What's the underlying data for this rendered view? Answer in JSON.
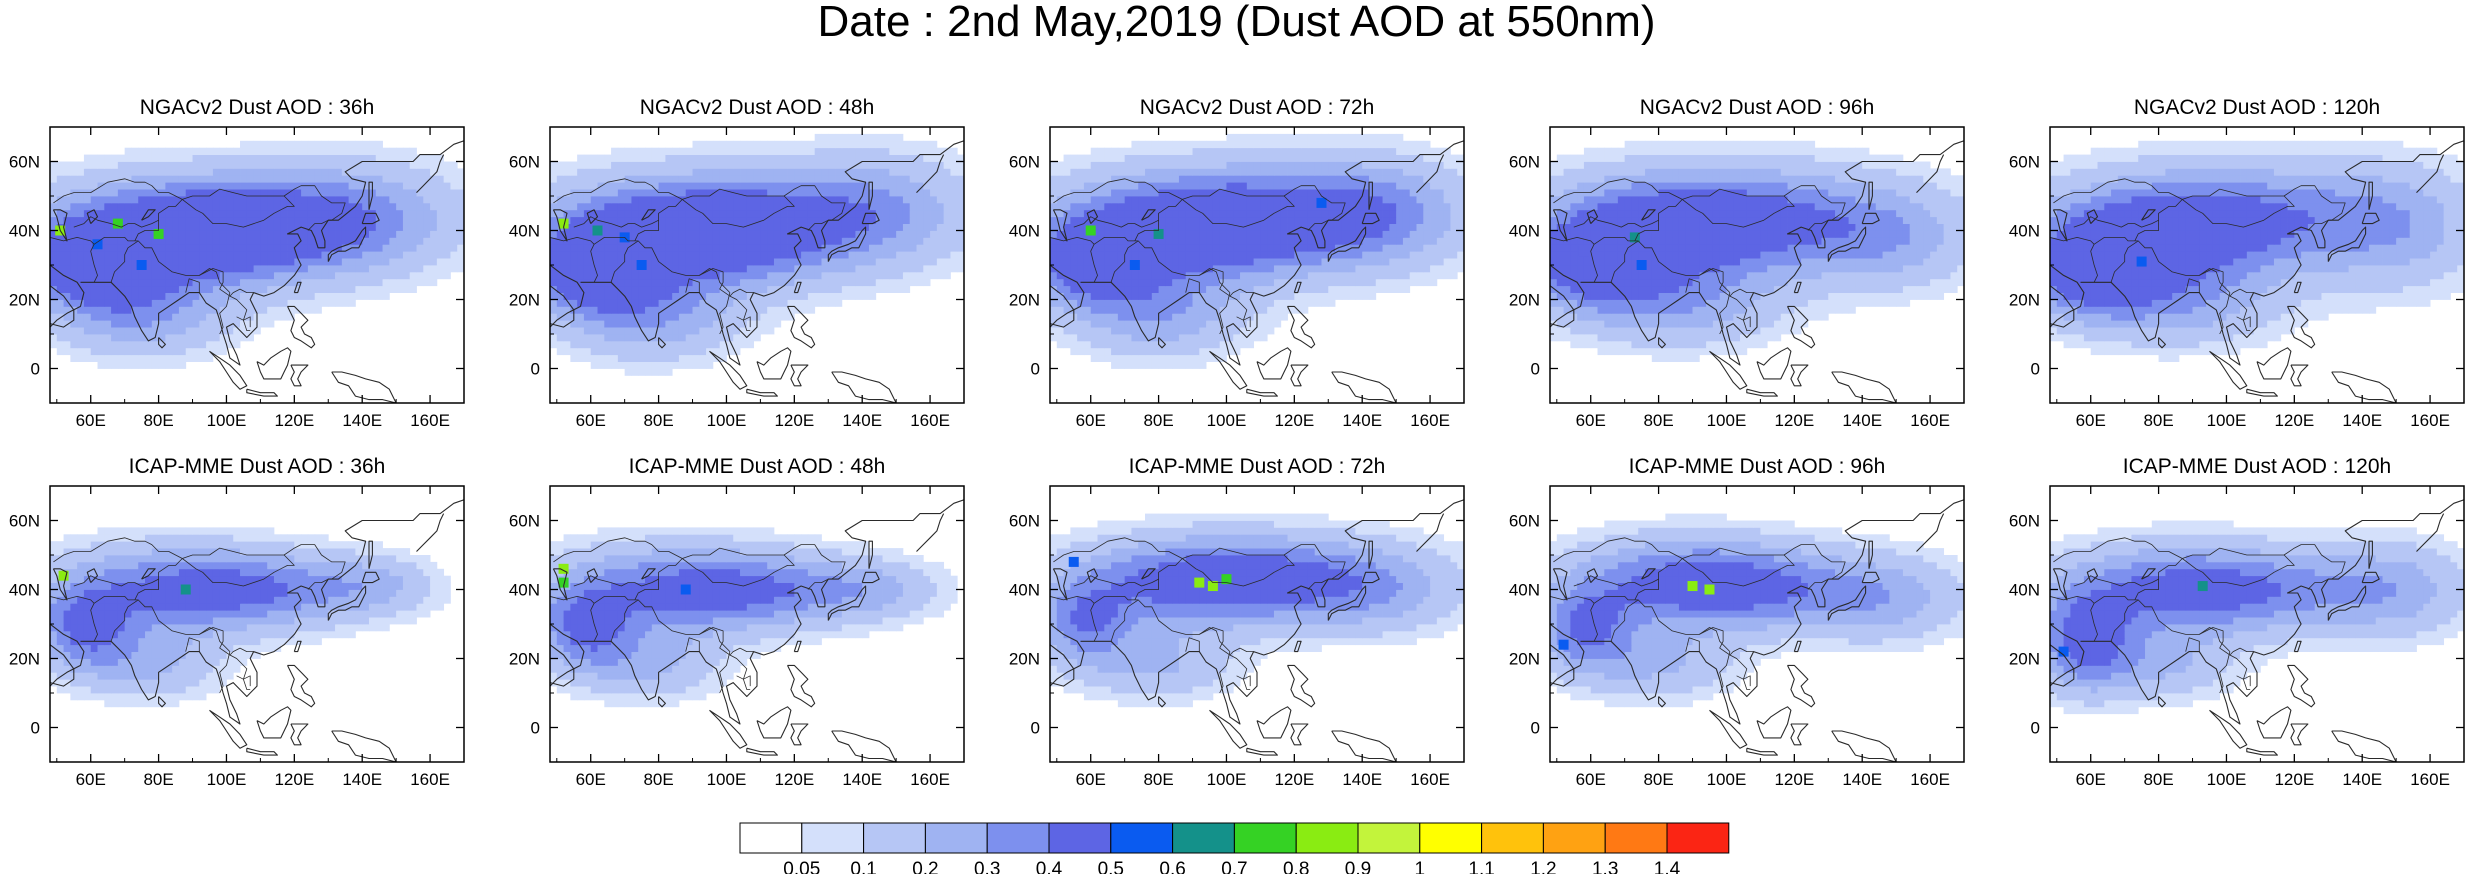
{
  "figure": {
    "title": "Date : 2nd May,2019 (Dust AOD at 550nm)"
  },
  "chart_data": {
    "type": "heatmap",
    "title": "Date : 2nd May,2019 (Dust AOD at 550nm)",
    "map_extent": {
      "lon": [
        48,
        170
      ],
      "lat": [
        -10,
        70
      ]
    },
    "x_ticks": [
      "60E",
      "80E",
      "100E",
      "120E",
      "140E",
      "160E"
    ],
    "x_tick_values": [
      60,
      80,
      100,
      120,
      140,
      160
    ],
    "y_ticks": [
      "60N",
      "40N",
      "20N",
      "0"
    ],
    "y_tick_values": [
      60,
      40,
      20,
      0
    ],
    "panels": [
      {
        "title": "NGACv2 Dust AOD : 36h",
        "model": "NGACv2",
        "forecast_hour": 36,
        "blobs": [
          {
            "lon": 85,
            "lat": 38,
            "rlon": 42,
            "rlat": 16,
            "peak": 0.45
          },
          {
            "lon": 60,
            "lat": 30,
            "rlon": 18,
            "rlat": 12,
            "peak": 0.42
          },
          {
            "lon": 110,
            "lat": 42,
            "rlon": 45,
            "rlat": 14,
            "peak": 0.3
          },
          {
            "lon": 140,
            "lat": 45,
            "rlon": 30,
            "rlat": 16,
            "peak": 0.18
          },
          {
            "lon": 75,
            "lat": 15,
            "rlon": 25,
            "rlat": 12,
            "peak": 0.25
          }
        ],
        "hotspots": [
          {
            "lon": 51,
            "lat": 40,
            "value": 0.8
          },
          {
            "lon": 68,
            "lat": 42,
            "value": 0.7
          },
          {
            "lon": 80,
            "lat": 39,
            "value": 0.7
          },
          {
            "lon": 62,
            "lat": 36,
            "value": 0.55
          },
          {
            "lon": 75,
            "lat": 30,
            "value": 0.5
          }
        ]
      },
      {
        "title": "NGACv2 Dust AOD : 48h",
        "model": "NGACv2",
        "forecast_hour": 48,
        "blobs": [
          {
            "lon": 82,
            "lat": 38,
            "rlon": 40,
            "rlat": 16,
            "peak": 0.45
          },
          {
            "lon": 60,
            "lat": 28,
            "rlon": 18,
            "rlat": 12,
            "peak": 0.42
          },
          {
            "lon": 112,
            "lat": 42,
            "rlon": 45,
            "rlat": 15,
            "peak": 0.32
          },
          {
            "lon": 145,
            "lat": 48,
            "rlon": 28,
            "rlat": 16,
            "peak": 0.18
          },
          {
            "lon": 78,
            "lat": 14,
            "rlon": 25,
            "rlat": 12,
            "peak": 0.25
          }
        ],
        "hotspots": [
          {
            "lon": 52,
            "lat": 42,
            "value": 0.8
          },
          {
            "lon": 62,
            "lat": 40,
            "value": 0.6
          },
          {
            "lon": 70,
            "lat": 38,
            "value": 0.55
          },
          {
            "lon": 75,
            "lat": 30,
            "value": 0.5
          }
        ]
      },
      {
        "title": "NGACv2 Dust AOD : 72h",
        "model": "NGACv2",
        "forecast_hour": 72,
        "blobs": [
          {
            "lon": 85,
            "lat": 40,
            "rlon": 40,
            "rlat": 16,
            "peak": 0.44
          },
          {
            "lon": 60,
            "lat": 30,
            "rlon": 18,
            "rlat": 12,
            "peak": 0.4
          },
          {
            "lon": 118,
            "lat": 44,
            "rlon": 45,
            "rlat": 15,
            "peak": 0.33
          },
          {
            "lon": 145,
            "lat": 46,
            "rlon": 25,
            "rlat": 16,
            "peak": 0.18
          },
          {
            "lon": 80,
            "lat": 15,
            "rlon": 25,
            "rlat": 12,
            "peak": 0.25
          }
        ],
        "hotspots": [
          {
            "lon": 60,
            "lat": 40,
            "value": 0.75
          },
          {
            "lon": 80,
            "lat": 39,
            "value": 0.6
          },
          {
            "lon": 73,
            "lat": 30,
            "value": 0.55
          },
          {
            "lon": 128,
            "lat": 48,
            "value": 0.5
          }
        ]
      },
      {
        "title": "NGACv2 Dust AOD : 96h",
        "model": "NGACv2",
        "forecast_hour": 96,
        "blobs": [
          {
            "lon": 80,
            "lat": 40,
            "rlon": 38,
            "rlat": 16,
            "peak": 0.42
          },
          {
            "lon": 60,
            "lat": 30,
            "rlon": 18,
            "rlat": 12,
            "peak": 0.4
          },
          {
            "lon": 115,
            "lat": 44,
            "rlon": 45,
            "rlat": 15,
            "peak": 0.3
          },
          {
            "lon": 148,
            "lat": 36,
            "rlon": 25,
            "rlat": 14,
            "peak": 0.18
          },
          {
            "lon": 85,
            "lat": 18,
            "rlon": 30,
            "rlat": 12,
            "peak": 0.24
          }
        ],
        "hotspots": [
          {
            "lon": 73,
            "lat": 38,
            "value": 0.6
          },
          {
            "lon": 75,
            "lat": 30,
            "value": 0.5
          },
          {
            "lon": 58,
            "lat": 34,
            "value": 0.45
          }
        ]
      },
      {
        "title": "NGACv2 Dust AOD : 120h",
        "model": "NGACv2",
        "forecast_hour": 120,
        "blobs": [
          {
            "lon": 78,
            "lat": 38,
            "rlon": 38,
            "rlat": 16,
            "peak": 0.42
          },
          {
            "lon": 60,
            "lat": 28,
            "rlon": 18,
            "rlat": 12,
            "peak": 0.4
          },
          {
            "lon": 110,
            "lat": 45,
            "rlon": 45,
            "rlat": 15,
            "peak": 0.28
          },
          {
            "lon": 150,
            "lat": 40,
            "rlon": 25,
            "rlat": 18,
            "peak": 0.2
          },
          {
            "lon": 85,
            "lat": 18,
            "rlon": 30,
            "rlat": 12,
            "peak": 0.22
          }
        ],
        "hotspots": [
          {
            "lon": 75,
            "lat": 31,
            "value": 0.55
          },
          {
            "lon": 62,
            "lat": 36,
            "value": 0.45
          }
        ]
      },
      {
        "title": "ICAP-MME Dust AOD : 36h",
        "model": "ICAP-MME",
        "forecast_hour": 36,
        "blobs": [
          {
            "lon": 85,
            "lat": 40,
            "rlon": 38,
            "rlat": 13,
            "peak": 0.38
          },
          {
            "lon": 58,
            "lat": 28,
            "rlon": 14,
            "rlat": 12,
            "peak": 0.35
          },
          {
            "lon": 118,
            "lat": 40,
            "rlon": 35,
            "rlat": 10,
            "peak": 0.22
          },
          {
            "lon": 145,
            "lat": 42,
            "rlon": 15,
            "rlat": 8,
            "peak": 0.12
          },
          {
            "lon": 78,
            "lat": 18,
            "rlon": 20,
            "rlat": 10,
            "peak": 0.2
          }
        ],
        "hotspots": [
          {
            "lon": 52,
            "lat": 44,
            "value": 0.8
          },
          {
            "lon": 88,
            "lat": 40,
            "value": 0.6
          }
        ]
      },
      {
        "title": "ICAP-MME Dust AOD : 48h",
        "model": "ICAP-MME",
        "forecast_hour": 48,
        "blobs": [
          {
            "lon": 85,
            "lat": 40,
            "rlon": 38,
            "rlat": 13,
            "peak": 0.38
          },
          {
            "lon": 58,
            "lat": 28,
            "rlon": 14,
            "rlat": 12,
            "peak": 0.35
          },
          {
            "lon": 118,
            "lat": 40,
            "rlon": 35,
            "rlat": 10,
            "peak": 0.22
          },
          {
            "lon": 145,
            "lat": 40,
            "rlon": 18,
            "rlat": 8,
            "peak": 0.12
          },
          {
            "lon": 78,
            "lat": 18,
            "rlon": 20,
            "rlat": 10,
            "peak": 0.2
          }
        ],
        "hotspots": [
          {
            "lon": 52,
            "lat": 46,
            "value": 0.8
          },
          {
            "lon": 52,
            "lat": 42,
            "value": 0.75
          },
          {
            "lon": 88,
            "lat": 40,
            "value": 0.5
          }
        ]
      },
      {
        "title": "ICAP-MME Dust AOD : 72h",
        "model": "ICAP-MME",
        "forecast_hour": 72,
        "blobs": [
          {
            "lon": 90,
            "lat": 42,
            "rlon": 38,
            "rlat": 13,
            "peak": 0.4
          },
          {
            "lon": 58,
            "lat": 30,
            "rlon": 14,
            "rlat": 12,
            "peak": 0.32
          },
          {
            "lon": 122,
            "lat": 44,
            "rlon": 40,
            "rlat": 12,
            "peak": 0.25
          },
          {
            "lon": 145,
            "lat": 38,
            "rlon": 25,
            "rlat": 12,
            "peak": 0.15
          },
          {
            "lon": 80,
            "lat": 18,
            "rlon": 22,
            "rlat": 10,
            "peak": 0.2
          }
        ],
        "hotspots": [
          {
            "lon": 92,
            "lat": 42,
            "value": 0.85
          },
          {
            "lon": 96,
            "lat": 41,
            "value": 0.85
          },
          {
            "lon": 100,
            "lat": 43,
            "value": 0.7
          },
          {
            "lon": 55,
            "lat": 48,
            "value": 0.5
          }
        ]
      },
      {
        "title": "ICAP-MME Dust AOD : 96h",
        "model": "ICAP-MME",
        "forecast_hour": 96,
        "blobs": [
          {
            "lon": 88,
            "lat": 42,
            "rlon": 36,
            "rlat": 13,
            "peak": 0.4
          },
          {
            "lon": 58,
            "lat": 28,
            "rlon": 14,
            "rlat": 12,
            "peak": 0.35
          },
          {
            "lon": 120,
            "lat": 40,
            "rlon": 40,
            "rlat": 12,
            "peak": 0.22
          },
          {
            "lon": 148,
            "lat": 36,
            "rlon": 22,
            "rlat": 12,
            "peak": 0.15
          },
          {
            "lon": 80,
            "lat": 18,
            "rlon": 22,
            "rlat": 10,
            "peak": 0.2
          }
        ],
        "hotspots": [
          {
            "lon": 90,
            "lat": 41,
            "value": 0.85
          },
          {
            "lon": 95,
            "lat": 40,
            "value": 0.8
          },
          {
            "lon": 52,
            "lat": 24,
            "value": 0.5
          }
        ]
      },
      {
        "title": "ICAP-MME Dust AOD : 120h",
        "model": "ICAP-MME",
        "forecast_hour": 120,
        "blobs": [
          {
            "lon": 85,
            "lat": 40,
            "rlon": 36,
            "rlat": 13,
            "peak": 0.38
          },
          {
            "lon": 58,
            "lat": 25,
            "rlon": 14,
            "rlat": 14,
            "peak": 0.4
          },
          {
            "lon": 118,
            "lat": 40,
            "rlon": 40,
            "rlat": 12,
            "peak": 0.2
          },
          {
            "lon": 150,
            "lat": 40,
            "rlon": 22,
            "rlat": 14,
            "peak": 0.18
          },
          {
            "lon": 80,
            "lat": 18,
            "rlon": 22,
            "rlat": 10,
            "peak": 0.2
          }
        ],
        "hotspots": [
          {
            "lon": 93,
            "lat": 41,
            "value": 0.6
          },
          {
            "lon": 52,
            "lat": 22,
            "value": 0.5
          }
        ]
      }
    ],
    "colorbar": {
      "labels": [
        "0.05",
        "0.1",
        "0.2",
        "0.3",
        "0.4",
        "0.5",
        "0.6",
        "0.7",
        "0.8",
        "0.9",
        "1",
        "1.1",
        "1.2",
        "1.3",
        "1.4"
      ],
      "levels": [
        0.05,
        0.1,
        0.2,
        0.3,
        0.4,
        0.5,
        0.6,
        0.7,
        0.8,
        0.9,
        1.0,
        1.1,
        1.2,
        1.3,
        1.4
      ],
      "colors": [
        "#ffffff",
        "#d4e0fb",
        "#b6c6f5",
        "#9fb3f2",
        "#7d90ee",
        "#5d65e4",
        "#0a5bf0",
        "#14918a",
        "#35d224",
        "#8aec12",
        "#c3f43b",
        "#ffff00",
        "#ffc20c",
        "#ffa212",
        "#ff7914",
        "#fb2514"
      ]
    }
  }
}
